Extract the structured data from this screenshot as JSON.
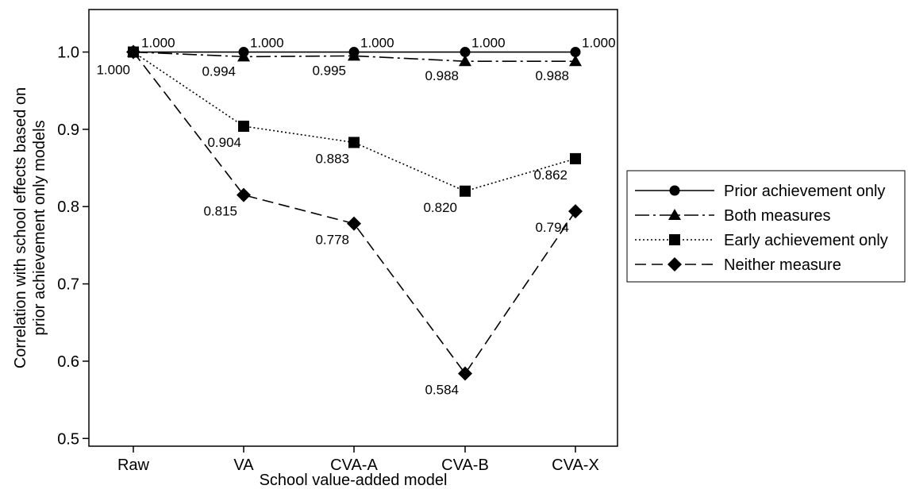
{
  "chart_data": {
    "type": "line",
    "title": "",
    "xlabel": "School value-added model",
    "ylabel_lines": [
      "Correlation with school effects based on",
      "prior achievement only models"
    ],
    "categories": [
      "Raw",
      "VA",
      "CVA-A",
      "CVA-B",
      "CVA-X"
    ],
    "ylim": [
      0.49,
      1.055
    ],
    "yticks": [
      0.5,
      0.6,
      0.7,
      0.8,
      0.9,
      1.0
    ],
    "ytick_labels": [
      "0.5",
      "0.6",
      "0.7",
      "0.8",
      "0.9",
      "1.0"
    ],
    "grid": false,
    "legend_position": "right",
    "series": [
      {
        "name": "Prior achievement only",
        "values": [
          1.0,
          1.0,
          1.0,
          1.0,
          1.0
        ],
        "labels": [
          "1.000",
          "1.000",
          "1.000",
          "1.000",
          "1.000"
        ],
        "marker": "circle",
        "dash": "none"
      },
      {
        "name": "Both measures",
        "values": [
          1.0,
          0.994,
          0.995,
          0.988,
          0.988
        ],
        "labels": [
          "1.000",
          "0.994",
          "0.995",
          "0.988",
          "0.988"
        ],
        "marker": "triangle",
        "dash": "long-dash-dot"
      },
      {
        "name": "Early achievement only",
        "values": [
          1.0,
          0.904,
          0.883,
          0.82,
          0.862
        ],
        "labels": [
          "",
          "0.904",
          "0.883",
          "0.820",
          "0.862"
        ],
        "marker": "square",
        "dash": "dotted"
      },
      {
        "name": "Neither measure",
        "values": [
          1.0,
          0.815,
          0.778,
          0.584,
          0.794
        ],
        "labels": [
          "",
          "0.815",
          "0.778",
          "0.584",
          "0.794"
        ],
        "marker": "diamond",
        "dash": "dashed"
      }
    ]
  }
}
